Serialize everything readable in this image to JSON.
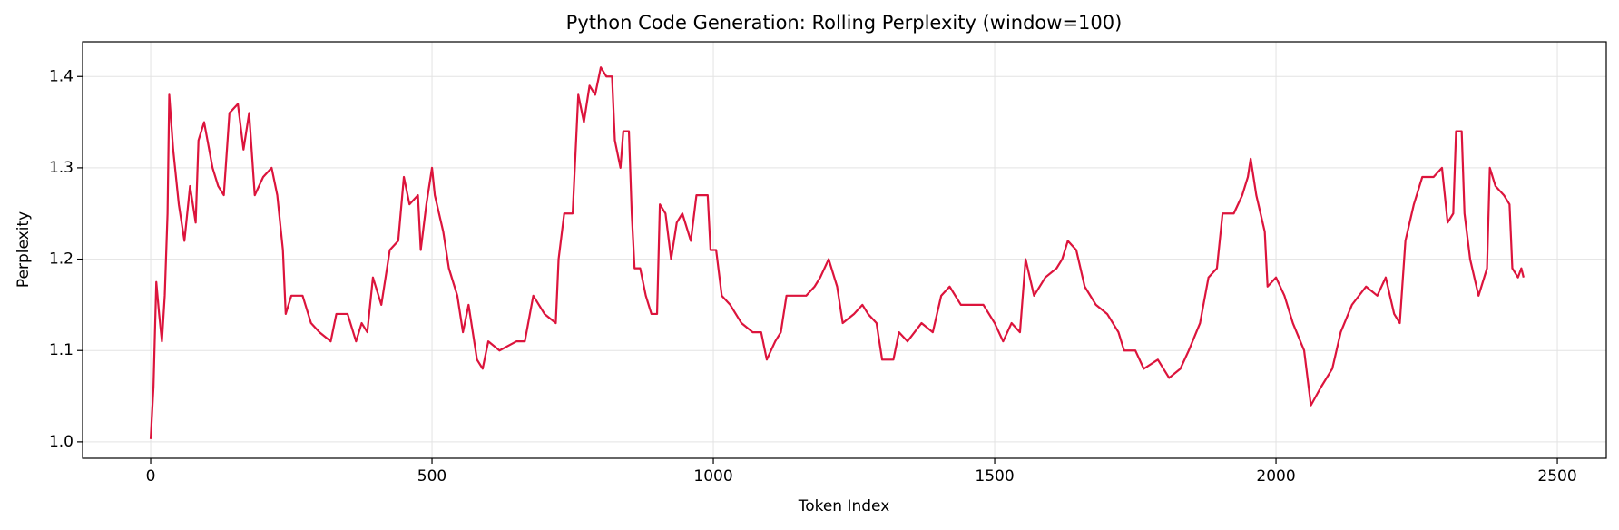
{
  "chart_data": {
    "type": "line",
    "title": "Python Code Generation: Rolling Perplexity (window=100)",
    "x_label": "Token Index",
    "y_label": "Perplexity",
    "xlim": [
      -121,
      2587
    ],
    "ylim": [
      0.982,
      1.438
    ],
    "xticks": [
      0,
      500,
      1000,
      1500,
      2000,
      2500
    ],
    "yticks": [
      {
        "value": 1,
        "label": "1.0"
      },
      1.1,
      1.2,
      1.3,
      1.4
    ],
    "grid": true,
    "series": [
      {
        "color": "#dc143c",
        "x": [
          0,
          5,
          10,
          15,
          20,
          25,
          30,
          33,
          40,
          50,
          60,
          70,
          80,
          85,
          95,
          110,
          120,
          130,
          140,
          155,
          165,
          175,
          185,
          200,
          215,
          225,
          235,
          240,
          250,
          270,
          285,
          300,
          320,
          330,
          350,
          365,
          375,
          385,
          395,
          410,
          425,
          440,
          450,
          460,
          475,
          480,
          490,
          500,
          505,
          520,
          530,
          545,
          555,
          565,
          580,
          590,
          600,
          620,
          650,
          665,
          680,
          700,
          720,
          725,
          735,
          750,
          760,
          770,
          780,
          790,
          800,
          810,
          820,
          825,
          835,
          840,
          850,
          855,
          860,
          870,
          880,
          890,
          900,
          905,
          915,
          925,
          935,
          945,
          960,
          970,
          980,
          990,
          995,
          1005,
          1015,
          1030,
          1050,
          1070,
          1085,
          1095,
          1110,
          1120,
          1130,
          1150,
          1165,
          1180,
          1190,
          1205,
          1220,
          1230,
          1250,
          1265,
          1275,
          1290,
          1300,
          1320,
          1330,
          1345,
          1370,
          1390,
          1405,
          1420,
          1440,
          1460,
          1480,
          1500,
          1515,
          1530,
          1545,
          1555,
          1570,
          1590,
          1610,
          1620,
          1630,
          1645,
          1660,
          1680,
          1700,
          1720,
          1730,
          1750,
          1765,
          1790,
          1810,
          1830,
          1845,
          1865,
          1880,
          1895,
          1905,
          1925,
          1940,
          1950,
          1955,
          1965,
          1980,
          1985,
          2000,
          2015,
          2030,
          2050,
          2062,
          2080,
          2100,
          2115,
          2135,
          2160,
          2180,
          2195,
          2210,
          2220,
          2230,
          2245,
          2260,
          2280,
          2295,
          2305,
          2315,
          2320,
          2330,
          2335,
          2345,
          2360,
          2375,
          2380,
          2390,
          2405,
          2415,
          2420,
          2430,
          2436,
          2440
        ],
        "values": [
          1.003,
          1.06,
          1.175,
          1.14,
          1.11,
          1.16,
          1.25,
          1.38,
          1.32,
          1.26,
          1.22,
          1.28,
          1.24,
          1.33,
          1.35,
          1.3,
          1.28,
          1.27,
          1.36,
          1.37,
          1.32,
          1.36,
          1.27,
          1.29,
          1.3,
          1.27,
          1.21,
          1.14,
          1.16,
          1.16,
          1.13,
          1.12,
          1.11,
          1.14,
          1.14,
          1.11,
          1.13,
          1.12,
          1.18,
          1.15,
          1.21,
          1.22,
          1.29,
          1.26,
          1.27,
          1.21,
          1.26,
          1.3,
          1.27,
          1.23,
          1.19,
          1.16,
          1.12,
          1.15,
          1.09,
          1.08,
          1.11,
          1.1,
          1.11,
          1.11,
          1.16,
          1.14,
          1.13,
          1.2,
          1.25,
          1.25,
          1.38,
          1.35,
          1.39,
          1.38,
          1.41,
          1.4,
          1.4,
          1.33,
          1.3,
          1.34,
          1.34,
          1.25,
          1.19,
          1.19,
          1.16,
          1.14,
          1.14,
          1.26,
          1.25,
          1.2,
          1.24,
          1.25,
          1.22,
          1.27,
          1.27,
          1.27,
          1.21,
          1.21,
          1.16,
          1.15,
          1.13,
          1.12,
          1.12,
          1.09,
          1.11,
          1.12,
          1.16,
          1.16,
          1.16,
          1.17,
          1.18,
          1.2,
          1.17,
          1.13,
          1.14,
          1.15,
          1.14,
          1.13,
          1.09,
          1.09,
          1.12,
          1.11,
          1.13,
          1.12,
          1.16,
          1.17,
          1.15,
          1.15,
          1.15,
          1.13,
          1.11,
          1.13,
          1.12,
          1.2,
          1.16,
          1.18,
          1.19,
          1.2,
          1.22,
          1.21,
          1.17,
          1.15,
          1.14,
          1.12,
          1.1,
          1.1,
          1.08,
          1.09,
          1.07,
          1.08,
          1.1,
          1.13,
          1.18,
          1.19,
          1.25,
          1.25,
          1.27,
          1.29,
          1.31,
          1.27,
          1.23,
          1.17,
          1.18,
          1.16,
          1.13,
          1.1,
          1.04,
          1.06,
          1.08,
          1.12,
          1.15,
          1.17,
          1.16,
          1.18,
          1.14,
          1.13,
          1.22,
          1.26,
          1.29,
          1.29,
          1.3,
          1.24,
          1.25,
          1.34,
          1.34,
          1.25,
          1.2,
          1.16,
          1.19,
          1.3,
          1.28,
          1.27,
          1.26,
          1.19,
          1.18,
          1.19,
          1.18
        ]
      }
    ]
  }
}
